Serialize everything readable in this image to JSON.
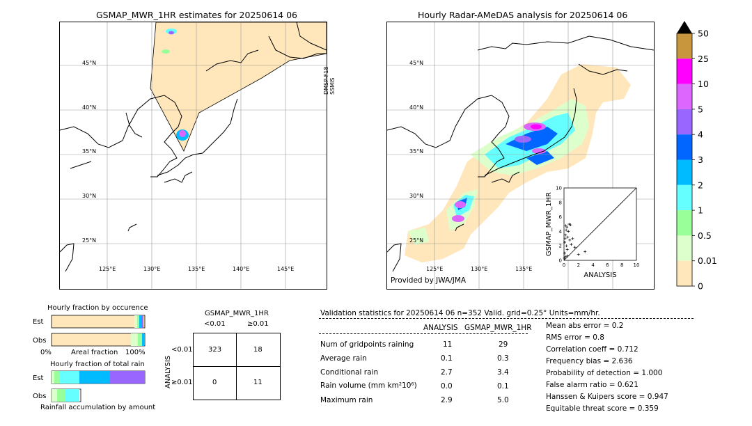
{
  "left_map": {
    "title": "GSMAP_MWR_1HR estimates for 20250614 06",
    "side_label_1": "DMSP-F18",
    "side_label_2": "SSMIS",
    "lat_labels": [
      "45°N",
      "40°N",
      "35°N",
      "30°N",
      "25°N"
    ],
    "lon_labels": [
      "125°E",
      "130°E",
      "135°E",
      "140°E",
      "145°E"
    ]
  },
  "right_map": {
    "title": "Hourly Radar-AMeDAS analysis for 20250614 06",
    "credit": "Provided by JWA/JMA",
    "lat_labels": [
      "45°N",
      "40°N",
      "35°N",
      "30°N",
      "25°N"
    ],
    "lon_labels": [
      "125°E",
      "130°E",
      "135°E"
    ]
  },
  "colorbar": {
    "labels": [
      "50",
      "25",
      "10",
      "5",
      "4",
      "3",
      "2",
      "1",
      "0.5",
      "0.01",
      "0"
    ],
    "colors": [
      "#c8963c",
      "#ff00ff",
      "#dd66ff",
      "#9966ff",
      "#0066ff",
      "#00bbff",
      "#66ffff",
      "#99ff99",
      "#ddffcc",
      "#ffe6bb"
    ],
    "top_arrow_color": "#000000"
  },
  "fraction_occurrence": {
    "title": "Hourly fraction by occurence",
    "row_labels": [
      "Est",
      "Obs"
    ],
    "axis_left": "0%",
    "axis_mid": "Areal fraction",
    "axis_right": "100%"
  },
  "fraction_total": {
    "title": "Hourly fraction of total rain",
    "row_labels": [
      "Est",
      "Obs"
    ],
    "footer": "Rainfall accumulation by amount"
  },
  "contingency": {
    "title": "GSMAP_MWR_1HR",
    "col_labels": [
      "<0.01",
      "≥0.01"
    ],
    "row_axis_label": "ANALYSIS",
    "row_labels": [
      "<0.01",
      "≥0.01"
    ],
    "cells": [
      [
        "323",
        "18"
      ],
      [
        "0",
        "11"
      ]
    ]
  },
  "validation": {
    "header": "Validation statistics for 20250614 06  n=352 Valid. grid=0.25° Units=mm/hr.",
    "col_analysis": "ANALYSIS",
    "col_gsmap": "GSMAP_MWR_1HR",
    "rows": [
      {
        "label": "Num of gridpoints raining",
        "analysis": "11",
        "gsmap": "29"
      },
      {
        "label": "Average rain",
        "analysis": "0.1",
        "gsmap": "0.3"
      },
      {
        "label": "Conditional rain",
        "analysis": "2.7",
        "gsmap": "3.4"
      },
      {
        "label": "Rain volume (mm km²10⁶)",
        "analysis": "0.0",
        "gsmap": "0.1"
      },
      {
        "label": "Maximum rain",
        "analysis": "2.9",
        "gsmap": "5.0"
      }
    ],
    "scores": [
      "Mean abs error =    0.2",
      "RMS error =    0.8",
      "Correlation coeff =  0.712",
      "Frequency bias =  2.636",
      "Probability of detection =  1.000",
      "False alarm ratio =  0.621",
      "Hanssen & Kuipers score =  0.947",
      "Equitable threat score =  0.359"
    ]
  },
  "chart_data": {
    "type": "scatter",
    "xlabel": "ANALYSIS",
    "ylabel": "GSMAP_MWR_1HR",
    "xlim": [
      0,
      10
    ],
    "ylim": [
      0,
      10
    ],
    "ticks": [
      "0",
      "2",
      "4",
      "6",
      "8",
      "10"
    ],
    "x": [
      0.05,
      0.1,
      0.15,
      0.2,
      0.3,
      0.35,
      0.4,
      0.45,
      0.5,
      0.6,
      0.7,
      0.8,
      1.0,
      1.2,
      1.5,
      2.0,
      2.9,
      0.1,
      0.2,
      0.25,
      0.5,
      0.9
    ],
    "y": [
      0.3,
      2.5,
      3.0,
      3.5,
      4.2,
      2.0,
      4.6,
      1.5,
      3.2,
      4.0,
      5.0,
      2.8,
      2.2,
      3.0,
      1.8,
      0.8,
      1.2,
      1.0,
      0.5,
      4.8,
      0.6,
      4.9
    ]
  }
}
